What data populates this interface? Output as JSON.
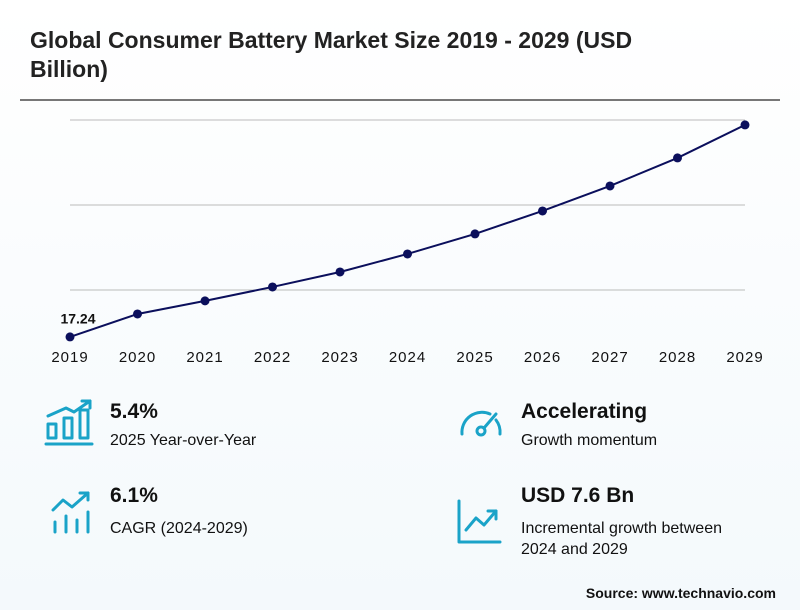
{
  "chart_data": {
    "type": "line",
    "title": "Global Consumer Battery Market Size 2019 - 2029 (USD Billion)",
    "categories": [
      "2019",
      "2020",
      "2021",
      "2022",
      "2023",
      "2024",
      "2025",
      "2026",
      "2027",
      "2028",
      "2029"
    ],
    "values": [
      17.24,
      18.59,
      19.36,
      20.18,
      21.06,
      22.12,
      23.3,
      24.65,
      26.12,
      27.77,
      29.71
    ],
    "value_labels": [
      "17.24",
      null,
      null,
      null,
      null,
      null,
      null,
      null,
      null,
      null,
      null
    ],
    "color": "#0b0f5c",
    "ylim": [
      16,
      31
    ],
    "yticks": [
      20,
      25,
      30
    ],
    "grid": true
  },
  "stats": [
    {
      "value": "5.4%",
      "label": "2025 Year-over-Year"
    },
    {
      "value": "Accelerating",
      "label": "Growth momentum"
    },
    {
      "value": "6.1%",
      "label": "CAGR (2024-2029)"
    },
    {
      "value": "USD 7.6 Bn",
      "label": "Incremental growth between 2024 and 2029"
    }
  ],
  "source": "Source: www.technavio.com"
}
